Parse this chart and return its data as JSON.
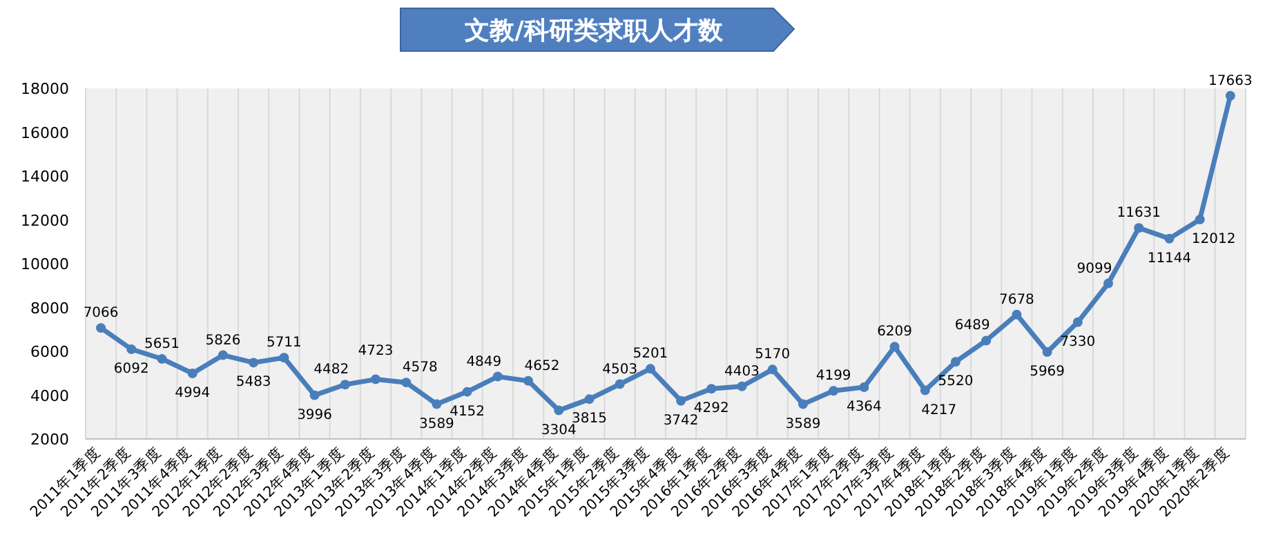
{
  "chart_data": {
    "type": "line",
    "title": "文教/科研类求职人才数",
    "categories": [
      "2011年1季度",
      "2011年2季度",
      "2011年3季度",
      "2011年4季度",
      "2012年1季度",
      "2012年2季度",
      "2012年3季度",
      "2012年4季度",
      "2013年1季度",
      "2013年2季度",
      "2013年3季度",
      "2013年4季度",
      "2014年1季度",
      "2014年2季度",
      "2014年3季度",
      "2014年4季度",
      "2015年1季度",
      "2015年2季度",
      "2015年3季度",
      "2015年4季度",
      "2016年1季度",
      "2016年2季度",
      "2016年3季度",
      "2016年4季度",
      "2017年1季度",
      "2017年2季度",
      "2017年3季度",
      "2017年4季度",
      "2018年1季度",
      "2018年2季度",
      "2018年3季度",
      "2018年4季度",
      "2019年1季度",
      "2019年2季度",
      "2019年3季度",
      "2019年4季度",
      "2020年1季度",
      "2020年2季度"
    ],
    "values": [
      7066,
      6092,
      5651,
      4994,
      5826,
      5483,
      5711,
      3996,
      4482,
      4723,
      4578,
      3589,
      4152,
      4849,
      4652,
      3304,
      3815,
      4503,
      5201,
      3742,
      4292,
      4403,
      5170,
      3589,
      4199,
      4364,
      6209,
      4217,
      5520,
      6489,
      7678,
      5969,
      7330,
      9099,
      11631,
      11144,
      12012,
      17663
    ],
    "color": "#4a7ebb",
    "marker": "circle",
    "data_labels": true,
    "grid": "x",
    "ylim": [
      2000,
      18000
    ],
    "yticks": [
      2000,
      4000,
      6000,
      8000,
      10000,
      12000,
      14000,
      16000,
      18000
    ]
  }
}
